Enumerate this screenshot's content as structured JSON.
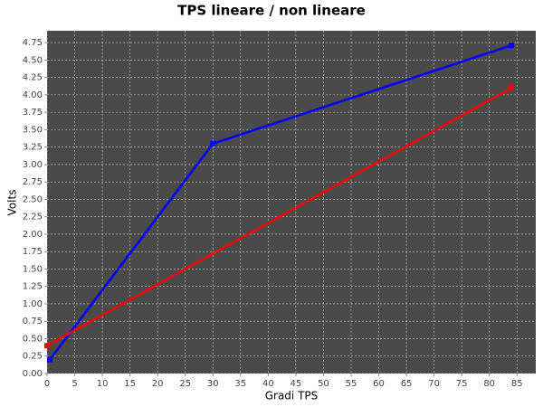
{
  "chart_data": {
    "type": "line",
    "title": "TPS lineare / non lineare",
    "x_label": "Gradi TPS",
    "y_label": "Volts",
    "xlim": [
      0,
      88.4
    ],
    "ylim": [
      0,
      4.92
    ],
    "xticks": [
      0,
      5,
      10,
      15,
      20,
      25,
      30,
      35,
      40,
      45,
      50,
      55,
      60,
      65,
      70,
      75,
      80,
      85
    ],
    "yticks": [
      {
        "value": 0,
        "label": "0.00"
      },
      0.25,
      {
        "value": 0.5,
        "label": "0.50"
      },
      0.75,
      {
        "value": 1,
        "label": "1.00"
      },
      1.25,
      {
        "value": 1.5,
        "label": "1.50"
      },
      1.75,
      {
        "value": 2,
        "label": "2.00"
      },
      2.25,
      {
        "value": 2.5,
        "label": "2.50"
      },
      2.75,
      {
        "value": 3,
        "label": "3.00"
      },
      3.25,
      {
        "value": 3.5,
        "label": "3.50"
      },
      3.75,
      {
        "value": 4,
        "label": "4.00"
      },
      4.25,
      {
        "value": 4.5,
        "label": "4.50"
      },
      4.75
    ],
    "grid": true,
    "series": [
      {
        "color": "#0000ff",
        "x": [
          0.5,
          30,
          84
        ],
        "values": [
          0.2,
          3.3,
          4.71
        ]
      },
      {
        "color": "#ff0000",
        "x": [
          0,
          84
        ],
        "values": [
          0.4,
          4.1
        ]
      }
    ]
  }
}
